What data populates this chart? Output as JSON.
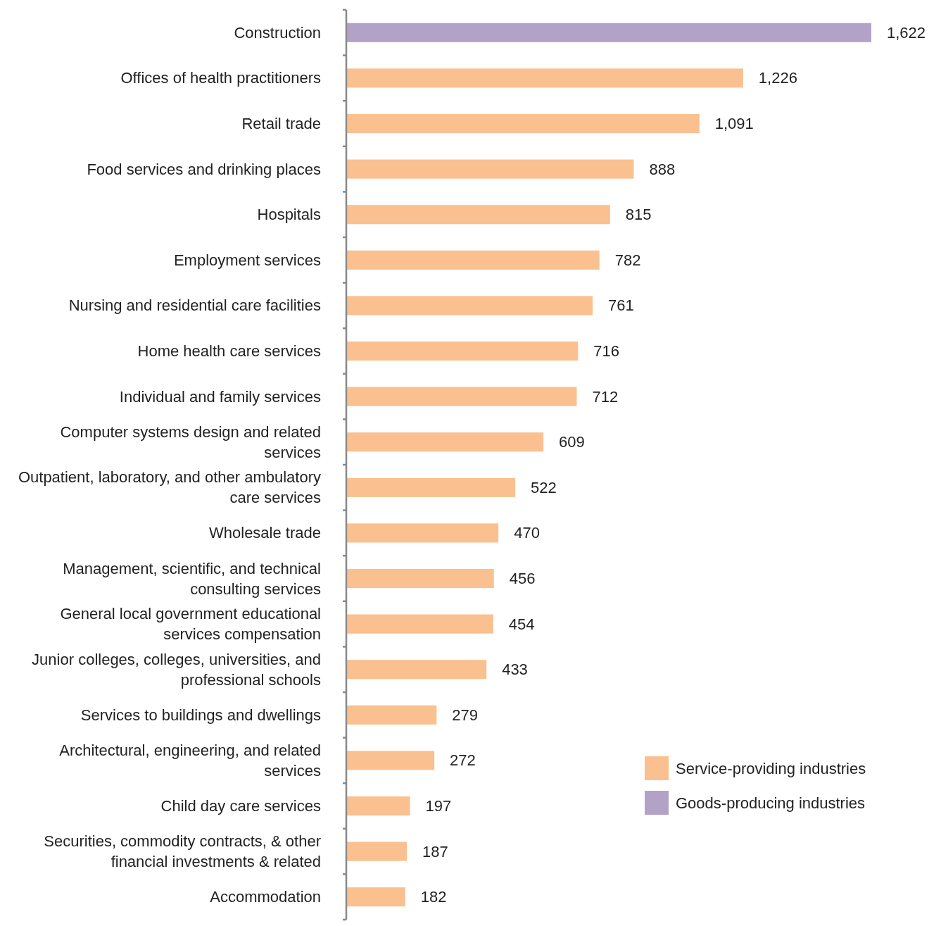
{
  "chart_data": {
    "type": "bar",
    "orientation": "horizontal",
    "stacked": true,
    "legend": "bottom right",
    "categories": [
      "Construction",
      "Offices of health practitioners",
      "Retail trade",
      "Food services and drinking places",
      "Hospitals",
      "Employment services",
      "Nursing and residential care facilities",
      "Home health care services",
      "Individual and family services",
      "Computer systems design and related services",
      "Outpatient, laboratory, and other ambulatory care services",
      "Wholesale trade",
      "Management, scientific, and technical consulting services",
      "General local government educational services compensation",
      "Junior colleges, colleges, universities, and professional schools",
      "Services to buildings and dwellings",
      "Architectural, engineering, and related services",
      "Child day care services",
      "Securities, commodity contracts, & other financial investments & related",
      "Accommodation"
    ],
    "series": [
      {
        "name": "Service-providing industries",
        "color": "#fac090",
        "values": [
          null,
          1226,
          1091,
          888,
          815,
          782,
          761,
          716,
          712,
          609,
          522,
          470,
          456,
          454,
          433,
          279,
          272,
          197,
          187,
          182
        ],
        "value_labels": [
          null,
          "1,226",
          "1,091",
          "888",
          "815",
          "782",
          "761",
          "716",
          "712",
          "609",
          "522",
          "470",
          "456",
          "454",
          "433",
          "279",
          "272",
          "197",
          "187",
          "182"
        ]
      },
      {
        "name": "Goods-producing industries",
        "color": "#b3a2c7",
        "values": [
          1622,
          null,
          null,
          null,
          null,
          null,
          null,
          null,
          null,
          null,
          null,
          null,
          null,
          null,
          null,
          null,
          null,
          null,
          null,
          null
        ],
        "value_labels": [
          "1,622",
          null,
          null,
          null,
          null,
          null,
          null,
          null,
          null,
          null,
          null,
          null,
          null,
          null,
          null,
          null,
          null,
          null,
          null,
          null
        ]
      }
    ]
  }
}
